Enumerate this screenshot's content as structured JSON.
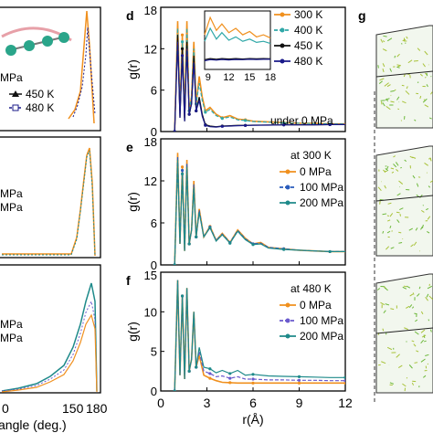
{
  "figure": {
    "left_panels": [
      {
        "labels": [
          "450 K",
          "480 K"
        ],
        "partial_text": "MPa"
      },
      {
        "labels": [
          "MPa",
          "MPa"
        ]
      },
      {
        "labels": [
          "MPa",
          "MPa"
        ]
      }
    ],
    "left_xaxis": {
      "ticks": [
        "0",
        "150",
        "180"
      ],
      "label": "angle (deg.)"
    },
    "panel_g_label": "g"
  },
  "chart_data": [
    {
      "panel": "d",
      "type": "line",
      "ylabel": "g(r)",
      "xlim": [
        0,
        12
      ],
      "ylim": [
        0,
        18
      ],
      "yticks": [
        "0",
        "6",
        "12",
        "18"
      ],
      "annotation": "under 0 MPa",
      "series": [
        {
          "name": "300 K",
          "color": "#f0901e",
          "x": [
            0.9,
            1.1,
            1.25,
            1.4,
            1.55,
            1.7,
            1.85,
            2.0,
            2.15,
            2.3,
            2.5,
            2.7,
            2.9,
            3.2,
            3.6,
            4.0,
            4.5,
            5.0,
            5.5,
            6,
            7,
            8,
            9,
            10,
            11,
            12
          ],
          "y": [
            0,
            16,
            3,
            14,
            2,
            16,
            3,
            5,
            13,
            4,
            8,
            5,
            3,
            3.5,
            2.5,
            2,
            2.3,
            1.8,
            1.7,
            1.5,
            1.4,
            1.3,
            1.2,
            1.2,
            1.1,
            1.1
          ]
        },
        {
          "name": "400 K",
          "color": "#30a8a8",
          "x": [
            0.9,
            1.1,
            1.25,
            1.4,
            1.55,
            1.7,
            1.85,
            2.0,
            2.15,
            2.3,
            2.5,
            2.7,
            2.9,
            3.2,
            3.6,
            4.0,
            4.5,
            5.0,
            5.5,
            6,
            7,
            8,
            9,
            10,
            11,
            12
          ],
          "y": [
            0,
            15,
            3,
            13,
            2,
            15,
            3,
            5,
            12,
            4,
            7,
            4.5,
            2.8,
            3.2,
            2.3,
            1.9,
            2.1,
            1.7,
            1.6,
            1.45,
            1.35,
            1.25,
            1.2,
            1.15,
            1.1,
            1.1
          ]
        },
        {
          "name": "450 K",
          "color": "#111111",
          "x": [
            0.9,
            1.1,
            1.25,
            1.4,
            1.55,
            1.7,
            1.85,
            2.0,
            2.15,
            2.3,
            2.5,
            2.7,
            2.9,
            3.2,
            3.6,
            4.0,
            4.5,
            5.0,
            5.5,
            6,
            7,
            8,
            9,
            10,
            11,
            12
          ],
          "y": [
            0,
            14,
            2,
            12,
            1.5,
            13,
            2.5,
            4,
            11,
            3,
            5,
            2.5,
            1,
            0.8,
            0.7,
            0.8,
            0.85,
            0.9,
            0.9,
            0.92,
            0.95,
            0.97,
            0.98,
            0.98,
            1,
            1
          ]
        },
        {
          "name": "480 K",
          "color": "#1a1a8a",
          "x": [
            0.9,
            1.1,
            1.25,
            1.4,
            1.55,
            1.7,
            1.85,
            2.0,
            2.15,
            2.3,
            2.5,
            2.7,
            2.9,
            3.2,
            3.6,
            4.0,
            4.5,
            5.0,
            5.5,
            6,
            7,
            8,
            9,
            10,
            11,
            12
          ],
          "y": [
            0,
            13,
            2,
            11,
            1.5,
            12,
            2.5,
            4,
            10,
            3,
            4.5,
            2.2,
            0.9,
            0.7,
            0.65,
            0.75,
            0.8,
            0.85,
            0.88,
            0.9,
            0.93,
            0.96,
            0.97,
            0.98,
            1,
            1
          ]
        }
      ],
      "inset": {
        "xticks": [
          "9",
          "12",
          "15",
          "18"
        ],
        "series": [
          {
            "name": "300 K",
            "color": "#f0901e",
            "x": [
              8.5,
              9.3,
              10.2,
              11,
              12,
              13,
              14,
              15,
              16,
              17,
              18
            ],
            "y": [
              2.1,
              2.9,
              2.3,
              2.6,
              2.2,
              2.4,
              2.1,
              2.25,
              2.0,
              2.1,
              1.95
            ]
          },
          {
            "name": "400 K",
            "color": "#30a8a8",
            "x": [
              8.5,
              9.3,
              10.2,
              11,
              12,
              13,
              14,
              15,
              16,
              17,
              18
            ],
            "y": [
              1.8,
              2.4,
              1.9,
              2.2,
              1.85,
              2.0,
              1.8,
              1.9,
              1.75,
              1.8,
              1.7
            ]
          },
          {
            "name": "450 K",
            "color": "#111111",
            "x": [
              8.5,
              9.3,
              10.2,
              11,
              12,
              13,
              14,
              15,
              16,
              17,
              18
            ],
            "y": [
              0.95,
              1.0,
              0.97,
              1.0,
              0.98,
              1.0,
              0.98,
              1.0,
              0.99,
              1.0,
              0.99
            ]
          },
          {
            "name": "480 K",
            "color": "#1a1a8a",
            "x": [
              8.5,
              9.3,
              10.2,
              11,
              12,
              13,
              14,
              15,
              16,
              17,
              18
            ],
            "y": [
              0.9,
              0.95,
              0.93,
              0.96,
              0.94,
              0.96,
              0.95,
              0.97,
              0.96,
              0.97,
              0.97
            ]
          }
        ]
      }
    },
    {
      "panel": "e",
      "type": "line",
      "ylabel": "g(r)",
      "xlim": [
        0,
        12
      ],
      "ylim": [
        0,
        18
      ],
      "yticks": [
        "0",
        "6",
        "12",
        "18"
      ],
      "annotation": "at 300 K",
      "series": [
        {
          "name": "0 MPa",
          "color": "#f0901e",
          "x": [
            0.9,
            1.1,
            1.25,
            1.4,
            1.55,
            1.7,
            1.85,
            2.0,
            2.15,
            2.3,
            2.5,
            2.8,
            3.2,
            3.6,
            4.0,
            4.5,
            5.0,
            5.5,
            6,
            6.5,
            7,
            8,
            9,
            10,
            11,
            12
          ],
          "y": [
            0,
            16,
            3,
            14,
            2,
            15,
            3,
            5,
            12,
            4,
            8,
            4,
            5.5,
            3.5,
            4.5,
            3.2,
            5,
            3.8,
            3,
            3.2,
            2.5,
            2.3,
            2.1,
            2,
            1.9,
            1.9
          ]
        },
        {
          "name": "100 MPa",
          "color": "#2a5cbc",
          "x": [
            0.9,
            1.1,
            1.25,
            1.4,
            1.55,
            1.7,
            1.85,
            2.0,
            2.15,
            2.3,
            2.5,
            2.8,
            3.2,
            3.6,
            4.0,
            4.5,
            5.0,
            5.5,
            6,
            6.5,
            7,
            8,
            9,
            10,
            11,
            12
          ],
          "y": [
            0,
            15.5,
            3,
            13.5,
            2,
            14.5,
            3,
            5,
            11.5,
            4,
            7.8,
            4,
            5.4,
            3.5,
            4.4,
            3.2,
            4.9,
            3.7,
            3,
            3.1,
            2.5,
            2.3,
            2.1,
            2,
            1.9,
            1.9
          ]
        },
        {
          "name": "200 MPa",
          "color": "#1e8a8a",
          "x": [
            0.9,
            1.1,
            1.25,
            1.4,
            1.55,
            1.7,
            1.85,
            2.0,
            2.15,
            2.3,
            2.5,
            2.8,
            3.2,
            3.6,
            4.0,
            4.5,
            5.0,
            5.5,
            6,
            6.5,
            7,
            8,
            9,
            10,
            11,
            12
          ],
          "y": [
            0,
            15,
            3,
            13,
            2,
            14,
            3,
            5,
            11,
            4,
            7.5,
            4,
            5.3,
            3.4,
            4.3,
            3.1,
            4.8,
            3.6,
            2.9,
            3.0,
            2.4,
            2.2,
            2.1,
            2,
            1.9,
            1.9
          ]
        }
      ]
    },
    {
      "panel": "f",
      "type": "line",
      "ylabel": "g(r)",
      "xlabel": "r(Å)",
      "xlim": [
        0,
        12
      ],
      "ylim": [
        0,
        15
      ],
      "yticks": [
        "0",
        "5",
        "10",
        "15"
      ],
      "xticks": [
        "0",
        "3",
        "6",
        "9",
        "12"
      ],
      "annotation": "at 480 K",
      "series": [
        {
          "name": "0 MPa",
          "color": "#f0901e",
          "x": [
            0.9,
            1.1,
            1.25,
            1.4,
            1.55,
            1.7,
            1.85,
            2.0,
            2.15,
            2.3,
            2.5,
            2.8,
            3.2,
            3.6,
            4.0,
            4.5,
            5.0,
            5.5,
            6,
            7,
            8,
            9,
            10,
            11,
            12
          ],
          "y": [
            0,
            14,
            2,
            12,
            1.5,
            13,
            2.5,
            4,
            10,
            3,
            4.5,
            2,
            1.6,
            1.3,
            1.1,
            1.05,
            1.0,
            1.0,
            1.0,
            1.0,
            1.0,
            1.0,
            1.0,
            1.0,
            1.0
          ]
        },
        {
          "name": "100 MPa",
          "color": "#6a5acd",
          "x": [
            0.9,
            1.1,
            1.25,
            1.4,
            1.55,
            1.7,
            1.85,
            2.0,
            2.15,
            2.3,
            2.5,
            2.8,
            3.2,
            3.6,
            4.0,
            4.5,
            5.0,
            5.5,
            6,
            7,
            8,
            9,
            10,
            11,
            12
          ],
          "y": [
            0,
            14,
            2,
            12,
            1.5,
            13,
            2.5,
            4,
            10,
            3,
            5,
            2.5,
            2.2,
            1.8,
            1.9,
            1.6,
            1.8,
            1.5,
            1.5,
            1.4,
            1.4,
            1.35,
            1.35,
            1.3,
            1.3
          ]
        },
        {
          "name": "200 MPa",
          "color": "#1e8a8a",
          "x": [
            0.9,
            1.1,
            1.25,
            1.4,
            1.55,
            1.7,
            1.85,
            2.0,
            2.15,
            2.3,
            2.5,
            2.8,
            3.2,
            3.6,
            4.0,
            4.5,
            5.0,
            5.5,
            6,
            7,
            8,
            9,
            10,
            11,
            12
          ],
          "y": [
            0,
            14,
            2,
            12,
            1.5,
            13,
            2.5,
            4,
            10,
            3,
            5.5,
            3,
            2.8,
            2.3,
            2.6,
            2.2,
            2.6,
            2.0,
            2.1,
            1.9,
            1.85,
            1.8,
            1.75,
            1.7,
            1.7
          ]
        }
      ]
    }
  ]
}
